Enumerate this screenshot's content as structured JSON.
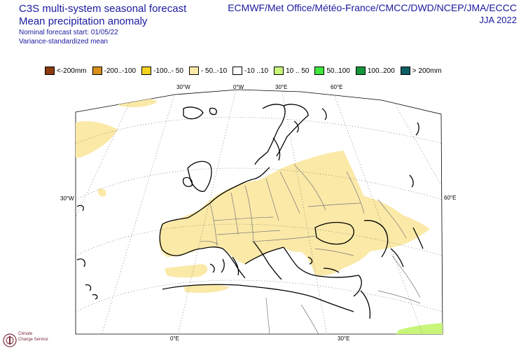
{
  "header": {
    "title": "C3S multi-system seasonal forecast",
    "subtitle": "Mean precipitation anomaly",
    "forecast_start": "Nominal forecast start: 01/05/22",
    "method": "Variance-standardized mean",
    "centres": "ECMWF/Met Office/Météo-France/CMCC/DWD/NCEP/JMA/ECCC",
    "season": "JJA 2022"
  },
  "legend": [
    {
      "label": "<-200mm",
      "color": "#8b3a0e"
    },
    {
      "label": "-200..-100",
      "color": "#d8901a"
    },
    {
      "label": "-100..- 50",
      "color": "#f5d21e"
    },
    {
      "label": "- 50..-10",
      "color": "#fbe9a8"
    },
    {
      "label": "-10 ..10",
      "color": "#ffffff"
    },
    {
      "label": "10 .. 50",
      "color": "#c8f57a"
    },
    {
      "label": "50..100",
      "color": "#3fe63f"
    },
    {
      "label": "100..200",
      "color": "#14963a"
    },
    {
      "label": "> 200mm",
      "color": "#0e5e66"
    }
  ],
  "map": {
    "lon_labels_top": [
      "30°W",
      "0°W",
      "30°E",
      "60°E"
    ],
    "lon_labels_bottom": [
      "0°E",
      "30°E"
    ],
    "lat_labels": [
      "30°W",
      "60°E"
    ],
    "anomaly_fill": "#fbe9a8",
    "wet_fill": "#c8f57a"
  },
  "logo": {
    "line1": "Climate",
    "line2": "Change Service"
  }
}
